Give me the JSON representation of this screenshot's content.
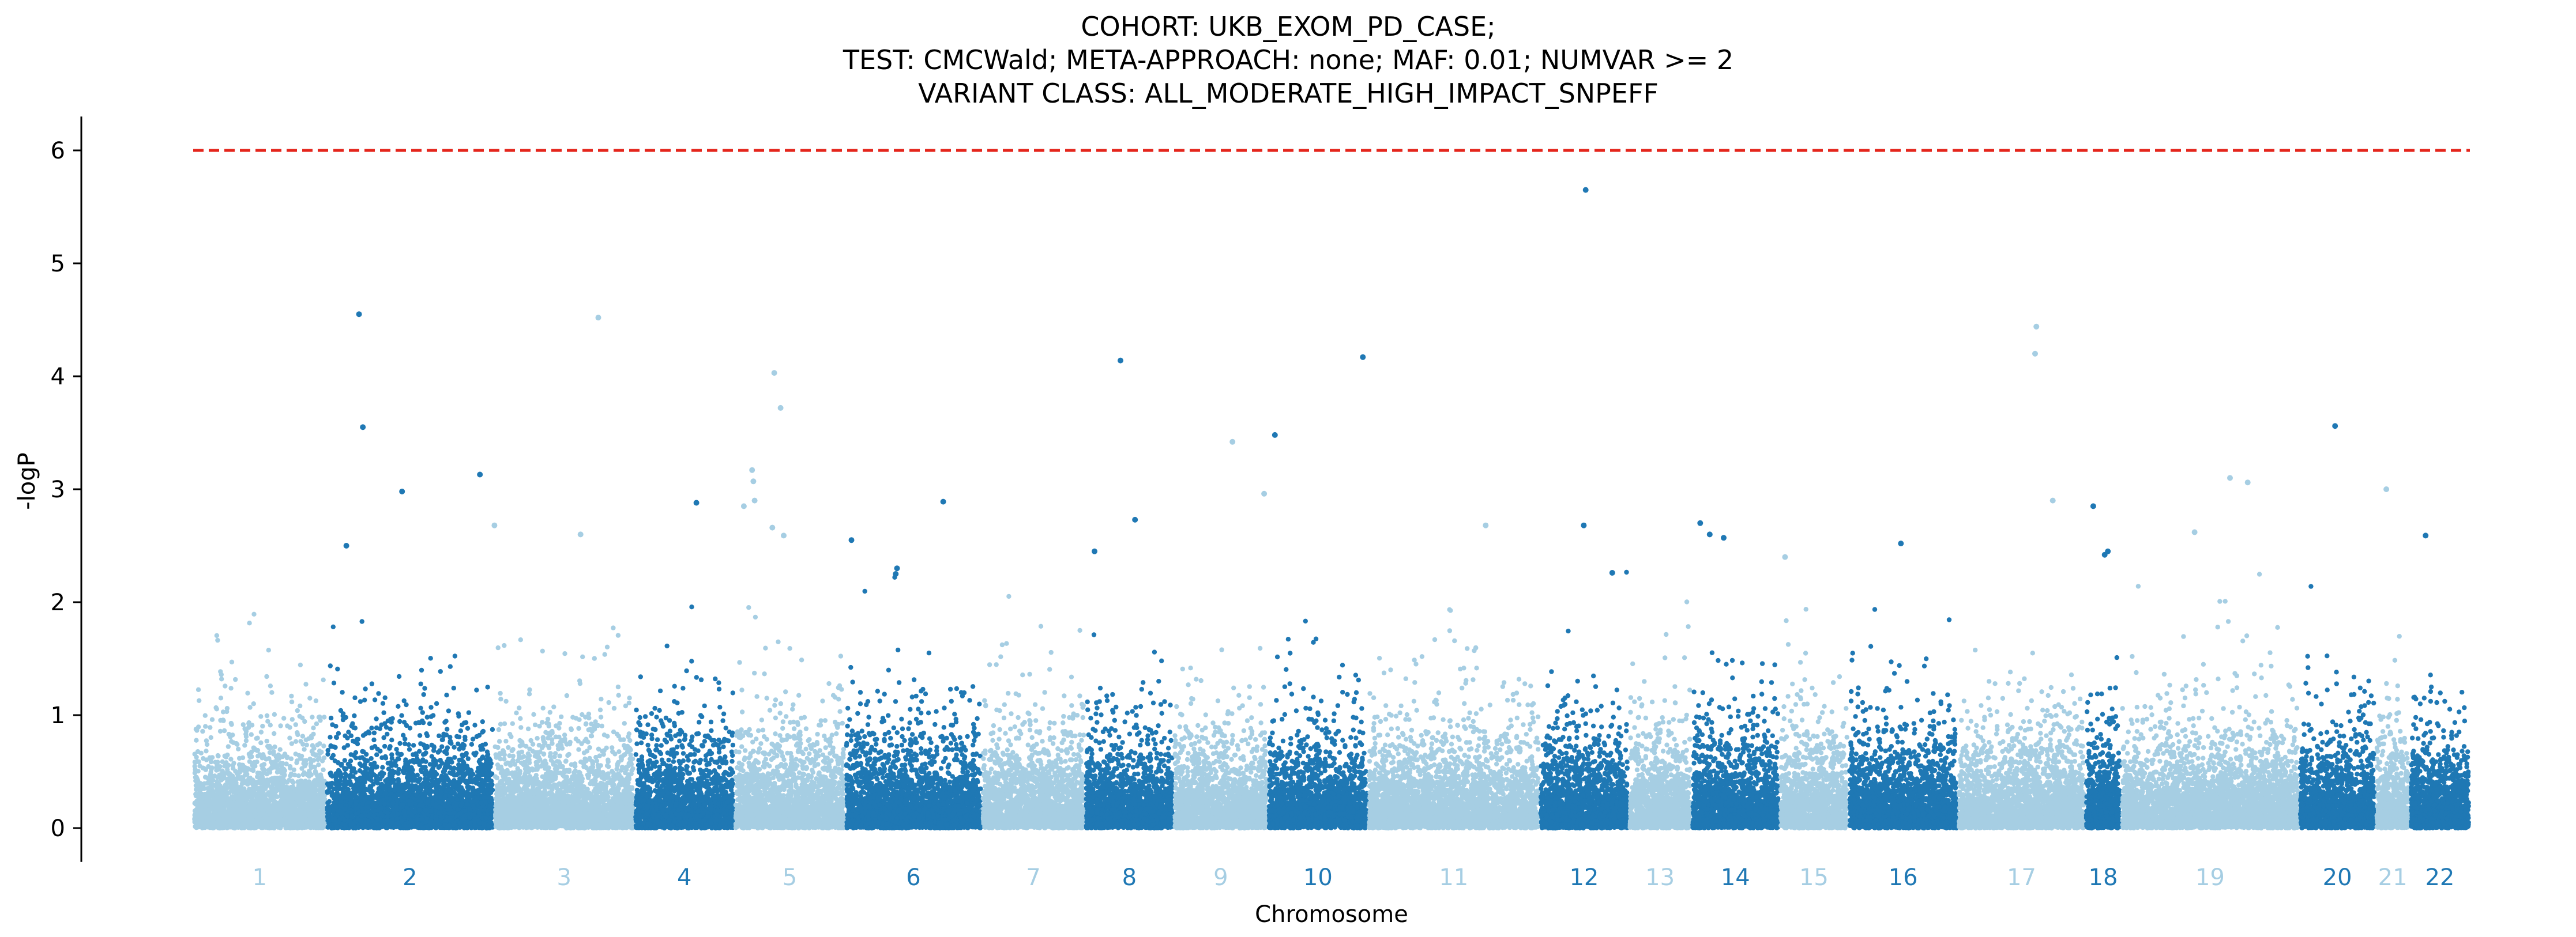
{
  "chart_data": {
    "type": "scatter",
    "subtype": "manhattan",
    "title_lines": [
      "COHORT: UKB_EXOM_PD_CASE;",
      "TEST: CMCWald; META-APPROACH: none; MAF: 0.01; NUMVAR >= 2",
      "VARIANT CLASS: ALL_MODERATE_HIGH_IMPACT_SNPEFF"
    ],
    "xlabel": "Chromosome",
    "ylabel": "-logP",
    "ylim": [
      -0.3,
      6.3
    ],
    "yticks": [
      "0",
      "1",
      "2",
      "3",
      "4",
      "5",
      "6"
    ],
    "significance_threshold": 6,
    "threshold_color": "#e4261c",
    "colors": [
      "#a6cee3",
      "#1f78b4"
    ],
    "grid": false,
    "legend": "none",
    "background_points_per_unit_width": 1.0,
    "chromosomes": [
      {
        "label": "1",
        "start": 0,
        "end": 210
      },
      {
        "label": "2",
        "start": 210,
        "end": 475
      },
      {
        "label": "3",
        "start": 475,
        "end": 697
      },
      {
        "label": "4",
        "start": 697,
        "end": 855
      },
      {
        "label": "5",
        "start": 855,
        "end": 1030
      },
      {
        "label": "6",
        "start": 1030,
        "end": 1246
      },
      {
        "label": "7",
        "start": 1246,
        "end": 1409
      },
      {
        "label": "8",
        "start": 1409,
        "end": 1549
      },
      {
        "label": "9",
        "start": 1549,
        "end": 1698
      },
      {
        "label": "10",
        "start": 1698,
        "end": 1856
      },
      {
        "label": "11",
        "start": 1856,
        "end": 2127
      },
      {
        "label": "12",
        "start": 2127,
        "end": 2268
      },
      {
        "label": "13",
        "start": 2268,
        "end": 2367
      },
      {
        "label": "14",
        "start": 2367,
        "end": 2506
      },
      {
        "label": "15",
        "start": 2506,
        "end": 2615
      },
      {
        "label": "16",
        "start": 2615,
        "end": 2788
      },
      {
        "label": "17",
        "start": 2788,
        "end": 2989
      },
      {
        "label": "18",
        "start": 2989,
        "end": 3046
      },
      {
        "label": "19",
        "start": 3046,
        "end": 3327
      },
      {
        "label": "20",
        "start": 3327,
        "end": 3448
      },
      {
        "label": "21",
        "start": 3448,
        "end": 3502
      },
      {
        "label": "22",
        "start": 3502,
        "end": 3597
      }
    ],
    "highlighted_points": [
      {
        "x": 262,
        "y": 4.55
      },
      {
        "x": 268,
        "y": 3.55
      },
      {
        "x": 242,
        "y": 2.5
      },
      {
        "x": 330,
        "y": 2.98
      },
      {
        "x": 640,
        "y": 4.52
      },
      {
        "x": 612,
        "y": 2.6
      },
      {
        "x": 453,
        "y": 3.13
      },
      {
        "x": 476,
        "y": 2.68
      },
      {
        "x": 918,
        "y": 4.03
      },
      {
        "x": 928,
        "y": 3.72
      },
      {
        "x": 883,
        "y": 3.17
      },
      {
        "x": 885,
        "y": 3.07
      },
      {
        "x": 887,
        "y": 2.9
      },
      {
        "x": 870,
        "y": 2.85
      },
      {
        "x": 795,
        "y": 2.88
      },
      {
        "x": 915,
        "y": 2.66
      },
      {
        "x": 933,
        "y": 2.59
      },
      {
        "x": 1040,
        "y": 2.55
      },
      {
        "x": 1185,
        "y": 2.89
      },
      {
        "x": 1112,
        "y": 2.3
      },
      {
        "x": 1110,
        "y": 2.25
      },
      {
        "x": 1465,
        "y": 4.14
      },
      {
        "x": 1488,
        "y": 2.73
      },
      {
        "x": 1424,
        "y": 2.45
      },
      {
        "x": 1642,
        "y": 3.42
      },
      {
        "x": 1709,
        "y": 3.48
      },
      {
        "x": 1692,
        "y": 2.96
      },
      {
        "x": 1848,
        "y": 4.17
      },
      {
        "x": 2042,
        "y": 2.68
      },
      {
        "x": 2200,
        "y": 5.65
      },
      {
        "x": 2197,
        "y": 2.68
      },
      {
        "x": 2242,
        "y": 2.26
      },
      {
        "x": 2381,
        "y": 2.7
      },
      {
        "x": 2396,
        "y": 2.6
      },
      {
        "x": 2418,
        "y": 2.57
      },
      {
        "x": 2515,
        "y": 2.4
      },
      {
        "x": 2698,
        "y": 2.52
      },
      {
        "x": 2912,
        "y": 4.44
      },
      {
        "x": 2910,
        "y": 4.2
      },
      {
        "x": 2938,
        "y": 2.9
      },
      {
        "x": 3002,
        "y": 2.85
      },
      {
        "x": 3025,
        "y": 2.45
      },
      {
        "x": 3020,
        "y": 2.42
      },
      {
        "x": 3218,
        "y": 3.1
      },
      {
        "x": 3246,
        "y": 3.06
      },
      {
        "x": 3162,
        "y": 2.62
      },
      {
        "x": 3384,
        "y": 3.56
      },
      {
        "x": 3465,
        "y": 3.0
      },
      {
        "x": 3527,
        "y": 2.59
      }
    ]
  }
}
